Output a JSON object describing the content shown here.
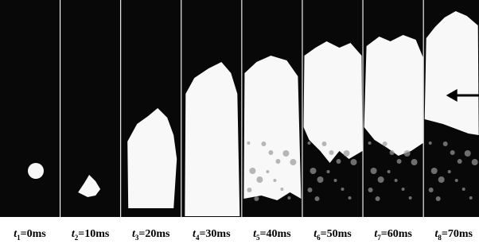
{
  "frames": [
    {
      "variable": "t",
      "subscript": "1",
      "time": "=0ms"
    },
    {
      "variable": "t",
      "subscript": "2",
      "time": "=10ms"
    },
    {
      "variable": "t",
      "subscript": "3",
      "time": "=20ms"
    },
    {
      "variable": "t",
      "subscript": "4",
      "time": "=30ms"
    },
    {
      "variable": "t",
      "subscript": "5",
      "time": "=40ms"
    },
    {
      "variable": "t",
      "subscript": "6",
      "time": "=50ms"
    },
    {
      "variable": "t",
      "subscript": "7",
      "time": "=60ms"
    },
    {
      "variable": "t",
      "subscript": "8",
      "time": "=70ms"
    }
  ]
}
